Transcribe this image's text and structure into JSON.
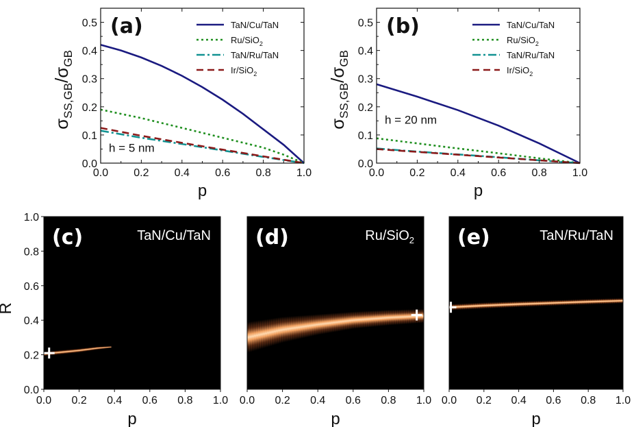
{
  "colors": {
    "TaN/Cu/TaN": "#1a1a80",
    "Ru/SiO2": "#1f8f1f",
    "TaN/Ru/TaN": "#129292",
    "Ir/SiO2": "#8b1a1a",
    "heat_core": "#ffd9b0",
    "heat_mid": "#f0a060",
    "heat_edge": "#7a3a1a",
    "marker": "#ffffff",
    "background_dark": "#000000"
  },
  "chart_data": [
    {
      "id": "a",
      "type": "line",
      "panel_label": "(a)",
      "annotation": "h = 5 nm",
      "xlabel": "p",
      "ylabel": "σSS,GB/σGB",
      "ylabel_parts": {
        "sigma": "σ",
        "sub_num": "SS,GB",
        "slash": "/",
        "sub_den": "GB"
      },
      "xlim": [
        0,
        1.0
      ],
      "ylim": [
        0,
        0.55
      ],
      "xticks": [
        "0.0",
        "0.2",
        "0.4",
        "0.6",
        "0.8",
        "1.0"
      ],
      "yticks": [
        "0.0",
        "0.1",
        "0.2",
        "0.3",
        "0.4",
        "0.5"
      ],
      "legend": [
        {
          "name": "TaN/Cu/TaN",
          "main": "TaN/Cu/TaN",
          "sub": "",
          "tail": "",
          "style": "solid"
        },
        {
          "name": "Ru/SiO2",
          "main": "Ru/SiO",
          "sub": "2",
          "tail": "",
          "style": "dotted"
        },
        {
          "name": "TaN/Ru/TaN",
          "main": "TaN/Ru/TaN",
          "sub": "",
          "tail": "",
          "style": "dashdot"
        },
        {
          "name": "Ir/SiO2",
          "main": "Ir/SiO",
          "sub": "2",
          "tail": "",
          "style": "dashed"
        }
      ],
      "series": [
        {
          "name": "TaN/Cu/TaN",
          "x": [
            0,
            0.1,
            0.2,
            0.3,
            0.4,
            0.5,
            0.6,
            0.7,
            0.8,
            0.9,
            1.0
          ],
          "values": [
            0.42,
            0.4,
            0.375,
            0.345,
            0.31,
            0.27,
            0.225,
            0.175,
            0.12,
            0.065,
            0.0
          ]
        },
        {
          "name": "Ru/SiO2",
          "x": [
            0,
            0.2,
            0.4,
            0.6,
            0.8,
            0.9,
            1.0
          ],
          "values": [
            0.19,
            0.16,
            0.125,
            0.09,
            0.055,
            0.03,
            0.0
          ]
        },
        {
          "name": "TaN/Ru/TaN",
          "x": [
            0,
            0.2,
            0.4,
            0.6,
            0.8,
            1.0
          ],
          "values": [
            0.115,
            0.09,
            0.068,
            0.045,
            0.022,
            0.0
          ]
        },
        {
          "name": "Ir/SiO2",
          "x": [
            0,
            0.2,
            0.4,
            0.6,
            0.8,
            1.0
          ],
          "values": [
            0.125,
            0.097,
            0.072,
            0.048,
            0.024,
            0.0
          ]
        }
      ]
    },
    {
      "id": "b",
      "type": "line",
      "panel_label": "(b)",
      "annotation": "h = 20 nm",
      "xlabel": "p",
      "ylabel": "σSS,GB/σGB",
      "ylabel_parts": {
        "sigma": "σ",
        "sub_num": "SS,GB",
        "slash": "/",
        "sub_den": "GB"
      },
      "xlim": [
        0,
        1.0
      ],
      "ylim": [
        0,
        0.55
      ],
      "xticks": [
        "0.0",
        "0.2",
        "0.4",
        "0.6",
        "0.8",
        "1.0"
      ],
      "yticks": [
        "0.0",
        "0.1",
        "0.2",
        "0.3",
        "0.4",
        "0.5"
      ],
      "legend": [
        {
          "name": "TaN/Cu/TaN",
          "main": "TaN/Cu/TaN",
          "sub": "",
          "tail": "",
          "style": "solid"
        },
        {
          "name": "Ru/SiO2",
          "main": "Ru/SiO",
          "sub": "2",
          "tail": "",
          "style": "dotted"
        },
        {
          "name": "TaN/Ru/TaN",
          "main": "TaN/Ru/TaN",
          "sub": "",
          "tail": "",
          "style": "dashdot"
        },
        {
          "name": "Ir/SiO2",
          "main": "Ir/SiO",
          "sub": "2",
          "tail": "",
          "style": "dashed"
        }
      ],
      "series": [
        {
          "name": "TaN/Cu/TaN",
          "x": [
            0,
            0.2,
            0.4,
            0.6,
            0.8,
            1.0
          ],
          "values": [
            0.28,
            0.236,
            0.188,
            0.133,
            0.07,
            0.0
          ]
        },
        {
          "name": "Ru/SiO2",
          "x": [
            0,
            0.2,
            0.4,
            0.6,
            0.8,
            1.0
          ],
          "values": [
            0.088,
            0.07,
            0.052,
            0.035,
            0.017,
            0.0
          ]
        },
        {
          "name": "TaN/Ru/TaN",
          "x": [
            0,
            0.2,
            0.4,
            0.6,
            0.8,
            1.0
          ],
          "values": [
            0.052,
            0.041,
            0.031,
            0.021,
            0.01,
            0.0
          ]
        },
        {
          "name": "Ir/SiO2",
          "x": [
            0,
            0.2,
            0.4,
            0.6,
            0.8,
            1.0
          ],
          "values": [
            0.05,
            0.04,
            0.03,
            0.02,
            0.01,
            0.0
          ]
        }
      ]
    },
    {
      "id": "c",
      "type": "heatmap",
      "panel_label": "(c)",
      "title_main": "TaN/Cu/TaN",
      "title_sub": "",
      "xlabel": "p",
      "ylabel": "R",
      "xlim": [
        0,
        1.0
      ],
      "ylim": [
        0,
        1.0
      ],
      "xticks": [
        "0.0",
        "0.2",
        "0.4",
        "0.6",
        "0.8",
        "1.0"
      ],
      "yticks": [
        "0.0",
        "0.2",
        "0.4",
        "0.6",
        "0.8",
        "1.0"
      ],
      "band": {
        "p": [
          0.0,
          0.1,
          0.2,
          0.3,
          0.38
        ],
        "center": [
          0.205,
          0.215,
          0.225,
          0.238,
          0.245
        ],
        "halfwidth": [
          0.012,
          0.012,
          0.011,
          0.009,
          0.005
        ]
      },
      "marker": {
        "p": 0.03,
        "R": 0.21
      }
    },
    {
      "id": "d",
      "type": "heatmap",
      "panel_label": "(d)",
      "title_main": "Ru/SiO",
      "title_sub": "2",
      "xlabel": "p",
      "ylabel": "R",
      "xlim": [
        0,
        1.0
      ],
      "ylim": [
        0,
        1.0
      ],
      "xticks": [
        "0.0",
        "0.2",
        "0.4",
        "0.6",
        "0.8",
        "1.0"
      ],
      "yticks": [
        "0.0",
        "0.2",
        "0.4",
        "0.6",
        "0.8",
        "1.0"
      ],
      "band": {
        "p": [
          0.0,
          0.2,
          0.4,
          0.6,
          0.8,
          1.0
        ],
        "center": [
          0.3,
          0.345,
          0.375,
          0.4,
          0.415,
          0.425
        ],
        "halfwidth": [
          0.09,
          0.075,
          0.06,
          0.05,
          0.045,
          0.04
        ]
      },
      "marker": {
        "p": 0.96,
        "R": 0.43
      }
    },
    {
      "id": "e",
      "type": "heatmap",
      "panel_label": "(e)",
      "title_main": "TaN/Ru/TaN",
      "title_sub": "",
      "xlabel": "p",
      "ylabel": "R",
      "xlim": [
        0,
        1.0
      ],
      "ylim": [
        0,
        1.0
      ],
      "xticks": [
        "0.0",
        "0.2",
        "0.4",
        "0.6",
        "0.8",
        "1.0"
      ],
      "yticks": [
        "0.0",
        "0.2",
        "0.4",
        "0.6",
        "0.8",
        "1.0"
      ],
      "band": {
        "p": [
          0.0,
          0.2,
          0.4,
          0.6,
          0.8,
          1.0
        ],
        "center": [
          0.475,
          0.485,
          0.493,
          0.5,
          0.507,
          0.513
        ],
        "halfwidth": [
          0.018,
          0.018,
          0.017,
          0.016,
          0.016,
          0.015
        ]
      },
      "marker": {
        "p": 0.01,
        "R": 0.475
      }
    }
  ]
}
